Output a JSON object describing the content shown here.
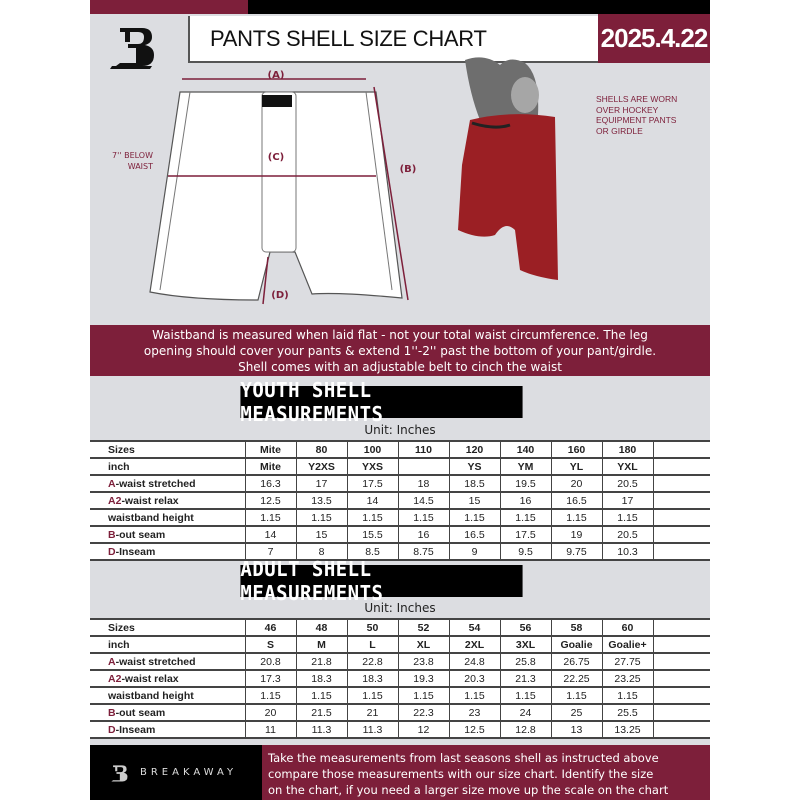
{
  "header": {
    "title": "PANTS SHELL SIZE CHART",
    "date": "2025.4.22",
    "brand_color": "#7d1f3a"
  },
  "diagram": {
    "label_a": "(A)",
    "label_b": "(B)",
    "label_c": "(C)",
    "label_d": "(D)",
    "c_note_line1": "7'' BELOW",
    "c_note_line2": "WAIST"
  },
  "photo_note": [
    "SHELLS ARE WORN",
    "OVER HOCKEY",
    "EQUIPMENT PANTS",
    "OR GIRDLE"
  ],
  "banner": [
    "Waistband is measured when laid flat - not your total waist circumference. The leg",
    "opening should cover your pants & extend 1''-2'' past the bottom of your pant/girdle.",
    "Shell comes with an adjustable belt to cinch the waist"
  ],
  "youth": {
    "title": "YOUTH SHELL MEASUREMENTS",
    "unit": "Unit: Inches",
    "rows": [
      {
        "prefix": "",
        "label": "Sizes",
        "values": [
          "Mite",
          "80",
          "100",
          "110",
          "120",
          "140",
          "160",
          "180"
        ]
      },
      {
        "prefix": "",
        "label": "inch",
        "values": [
          "Mite",
          "Y2XS",
          "YXS",
          "",
          "YS",
          "YM",
          "YL",
          "YXL"
        ]
      },
      {
        "prefix": "A",
        "label": "-waist stretched",
        "values": [
          "16.3",
          "17",
          "17.5",
          "18",
          "18.5",
          "19.5",
          "20",
          "20.5"
        ]
      },
      {
        "prefix": "A2",
        "label": "-waist relax",
        "values": [
          "12.5",
          "13.5",
          "14",
          "14.5",
          "15",
          "16",
          "16.5",
          "17"
        ]
      },
      {
        "prefix": "",
        "label": "waistband height",
        "values": [
          "1.15",
          "1.15",
          "1.15",
          "1.15",
          "1.15",
          "1.15",
          "1.15",
          "1.15"
        ]
      },
      {
        "prefix": "B",
        "label": "-out seam",
        "values": [
          "14",
          "15",
          "15.5",
          "16",
          "16.5",
          "17.5",
          "19",
          "20.5"
        ]
      },
      {
        "prefix": "D",
        "label": "-Inseam",
        "values": [
          "7",
          "8",
          "8.5",
          "8.75",
          "9",
          "9.5",
          "9.75",
          "10.3"
        ]
      }
    ]
  },
  "adult": {
    "title": "ADULT SHELL MEASUREMENTS",
    "unit": "Unit: Inches",
    "rows": [
      {
        "prefix": "",
        "label": "Sizes",
        "values": [
          "46",
          "48",
          "50",
          "52",
          "54",
          "56",
          "58",
          "60"
        ]
      },
      {
        "prefix": "",
        "label": "inch",
        "values": [
          "S",
          "M",
          "L",
          "XL",
          "2XL",
          "3XL",
          "Goalie",
          "Goalie+"
        ]
      },
      {
        "prefix": "A",
        "label": "-waist stretched",
        "values": [
          "20.8",
          "21.8",
          "22.8",
          "23.8",
          "24.8",
          "25.8",
          "26.75",
          "27.75"
        ]
      },
      {
        "prefix": "A2",
        "label": "-waist relax",
        "values": [
          "17.3",
          "18.3",
          "18.3",
          "19.3",
          "20.3",
          "21.3",
          "22.25",
          "23.25"
        ]
      },
      {
        "prefix": "",
        "label": "waistband height",
        "values": [
          "1.15",
          "1.15",
          "1.15",
          "1.15",
          "1.15",
          "1.15",
          "1.15",
          "1.15"
        ]
      },
      {
        "prefix": "B",
        "label": "-out seam",
        "values": [
          "20",
          "21.5",
          "21",
          "22.3",
          "23",
          "24",
          "25",
          "25.5"
        ]
      },
      {
        "prefix": "D",
        "label": "-Inseam",
        "values": [
          "11",
          "11.3",
          "11.3",
          "12",
          "12.5",
          "12.8",
          "13",
          "13.25"
        ]
      }
    ]
  },
  "footer": {
    "brand": "BREAKAWAY",
    "lines": [
      "Take the measurements from last seasons shell as instructed above",
      "compare those measurements  with our size chart. Identify the size",
      "on the chart, if you need a larger size move up the scale on the chart"
    ]
  }
}
